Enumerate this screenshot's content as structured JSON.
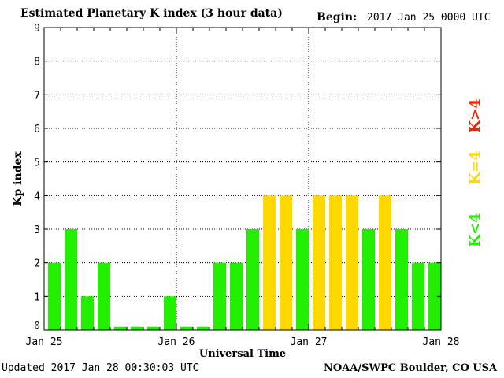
{
  "header": {
    "title": "Estimated Planetary K index (3 hour data)",
    "begin_label": "Begin:",
    "begin_value": "2017 Jan 25 0000 UTC"
  },
  "footer": {
    "updated": "Updated 2017 Jan 28 00:30:03 UTC",
    "source": "NOAA/SWPC Boulder, CO USA"
  },
  "legend": [
    {
      "label": "K>4",
      "color": "#ff2000"
    },
    {
      "label": "K=4",
      "color": "#ffd800"
    },
    {
      "label": "K<4",
      "color": "#22ee00"
    }
  ],
  "chart_data": {
    "type": "bar",
    "title": "Estimated Planetary K index (3 hour data)",
    "xlabel": "Universal Time",
    "ylabel": "Kp index",
    "ylim": [
      0,
      9
    ],
    "yticks": [
      0,
      1,
      2,
      3,
      4,
      5,
      6,
      7,
      8,
      9
    ],
    "xtick_labels": [
      "Jan 25",
      "Jan 26",
      "Jan 27",
      "Jan 28"
    ],
    "interval_hours": 3,
    "grid": true,
    "values": [
      2,
      3,
      1,
      2,
      0,
      0,
      0,
      1,
      0,
      0,
      2,
      2,
      3,
      4,
      4,
      3,
      4,
      4,
      4,
      3,
      4,
      3,
      2,
      2
    ],
    "colors": {
      "below4": "#22ee00",
      "equal4": "#ffd800",
      "above4": "#ff2000"
    }
  }
}
